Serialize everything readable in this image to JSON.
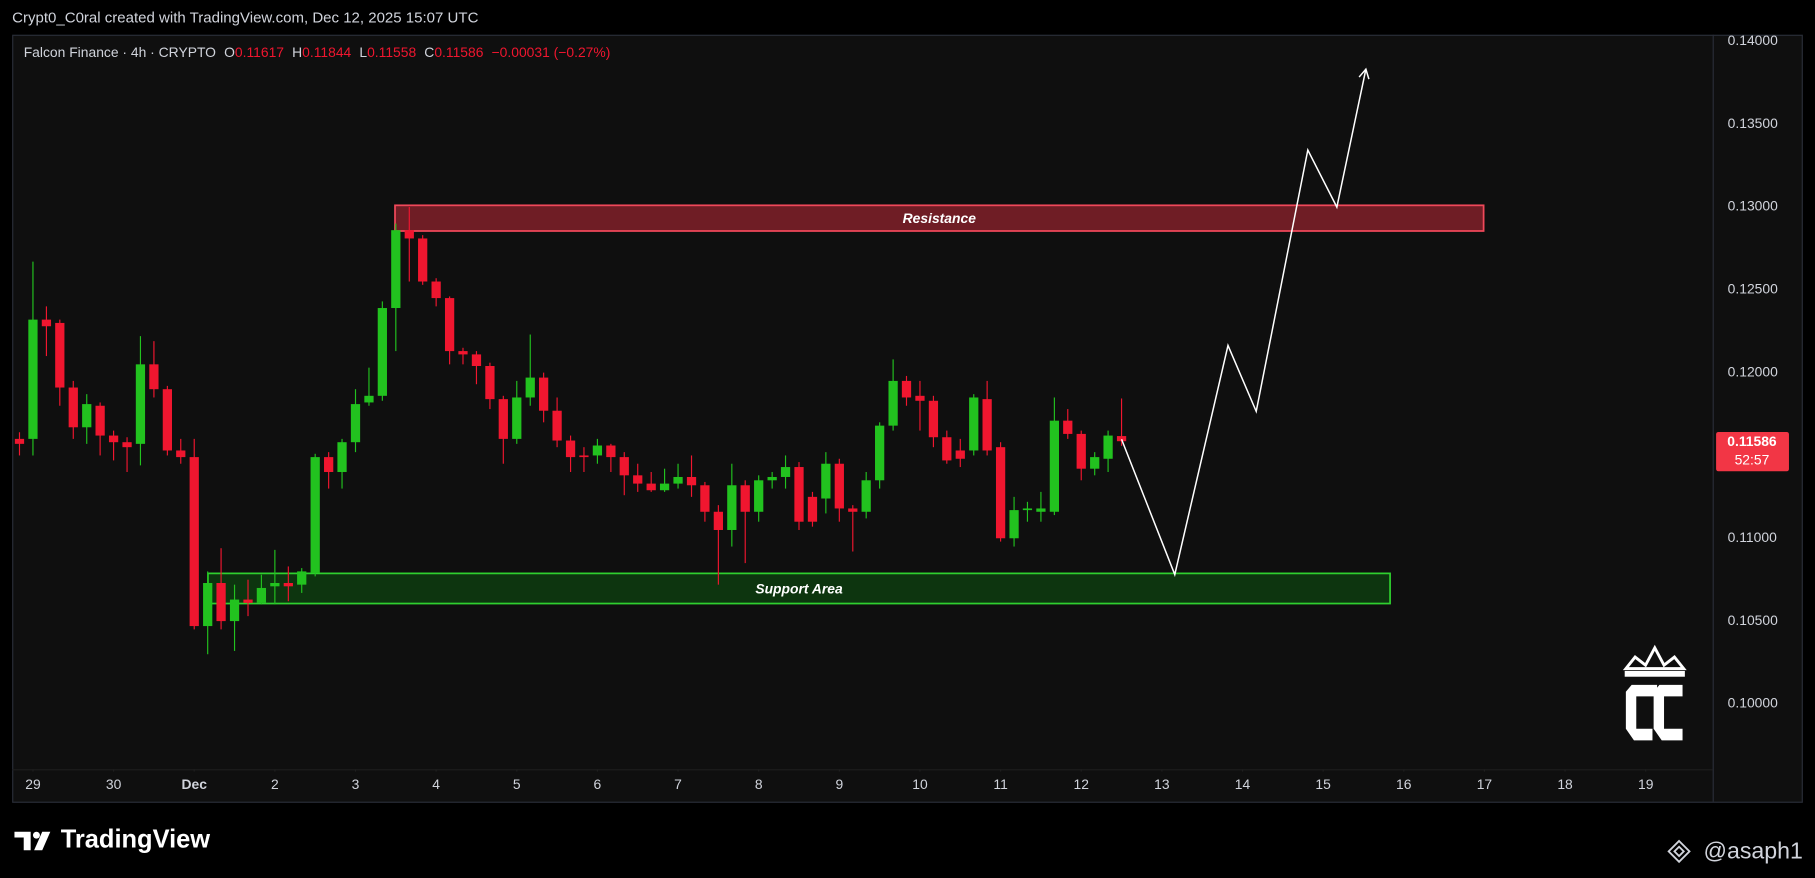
{
  "header": {
    "text": "Crypt0_C0ral created with TradingView.com, Dec 12, 2025 15:07 UTC"
  },
  "footer": {
    "brand": "TradingView",
    "handle": "@asaph1"
  },
  "chart_data": {
    "type": "candlestick",
    "title": "Falcon Finance · 4h · CRYPTO",
    "legend_fields": [
      {
        "key": "O",
        "value": 0.11617
      },
      {
        "key": "H",
        "value": 0.11844
      },
      {
        "key": "L",
        "value": 0.11558
      },
      {
        "key": "C",
        "value": 0.11586
      }
    ],
    "change": "−0.00031 (−0.27%)",
    "up_color": "#22c21f",
    "down_color": "#f0162f",
    "x": [
      -0.167,
      0,
      0.167,
      0.333,
      0.5,
      0.667,
      0.833,
      1,
      1.167,
      1.333,
      1.5,
      1.667,
      1.833,
      2,
      2.167,
      2.333,
      2.5,
      2.667,
      2.833,
      3,
      3.167,
      3.333,
      3.5,
      3.667,
      3.833,
      4,
      4.167,
      4.333,
      4.5,
      4.667,
      4.833,
      5,
      5.167,
      5.333,
      5.5,
      5.667,
      5.833,
      6,
      6.167,
      6.333,
      6.5,
      6.667,
      6.833,
      7,
      7.167,
      7.333,
      7.5,
      7.667,
      7.833,
      8,
      8.167,
      8.333,
      8.5,
      8.667,
      8.833,
      9,
      9.167,
      9.333,
      9.5,
      9.667,
      9.833,
      10,
      10.167,
      10.333,
      10.5,
      10.667,
      10.833,
      11,
      11.167,
      11.333,
      11.5,
      11.667,
      11.833,
      12,
      12.167,
      12.333,
      12.5,
      12.667,
      12.833,
      13,
      13.167,
      13.333,
      13.5
    ],
    "open": [
      0.116,
      0.116,
      0.1232,
      0.123,
      0.1191,
      0.1167,
      0.118,
      0.1162,
      0.1158,
      0.1157,
      0.1205,
      0.119,
      0.1153,
      0.1149,
      0.1047,
      0.1073,
      0.105,
      0.1063,
      0.1061,
      0.1071,
      0.1073,
      0.1072,
      0.1079,
      0.1149,
      0.114,
      0.1158,
      0.1182,
      0.1186,
      0.1239,
      0.1286,
      0.1281,
      0.1255,
      0.1245,
      0.1213,
      0.1211,
      0.1204,
      0.1184,
      0.116,
      0.1185,
      0.1197,
      0.1177,
      0.1159,
      0.115,
      0.115,
      0.1156,
      0.1149,
      0.1138,
      0.1133,
      0.1129,
      0.1133,
      0.1137,
      0.1132,
      0.1116,
      0.1105,
      0.1132,
      0.1116,
      0.1135,
      0.1137,
      0.1143,
      0.1125,
      0.1124,
      0.1145,
      0.1118,
      0.1116,
      0.1135,
      0.1168,
      0.1195,
      0.1186,
      0.1183,
      0.1161,
      0.1153,
      0.1153,
      0.1184,
      0.1155,
      0.11,
      0.1117,
      0.1116,
      0.1116,
      0.1171,
      0.1163,
      0.1142,
      0.1148,
      0.11617
    ],
    "high": [
      0.1164,
      0.1267,
      0.124,
      0.1232,
      0.1195,
      0.1187,
      0.1182,
      0.1165,
      0.1161,
      0.1222,
      0.1219,
      0.1192,
      0.116,
      0.116,
      0.108,
      0.1094,
      0.1072,
      0.1075,
      0.1078,
      0.1093,
      0.1083,
      0.1082,
      0.1151,
      0.1152,
      0.116,
      0.119,
      0.1203,
      0.1243,
      0.129,
      0.13,
      0.1283,
      0.1257,
      0.1246,
      0.1215,
      0.1213,
      0.1206,
      0.1186,
      0.1195,
      0.1223,
      0.12,
      0.1185,
      0.1162,
      0.1155,
      0.116,
      0.1157,
      0.1152,
      0.1145,
      0.114,
      0.1142,
      0.1145,
      0.115,
      0.1134,
      0.112,
      0.1145,
      0.1135,
      0.1138,
      0.114,
      0.115,
      0.1146,
      0.1128,
      0.1152,
      0.1148,
      0.112,
      0.114,
      0.117,
      0.1208,
      0.1198,
      0.1195,
      0.1186,
      0.1165,
      0.116,
      0.1187,
      0.1195,
      0.1158,
      0.1125,
      0.1122,
      0.1128,
      0.1185,
      0.1178,
      0.1165,
      0.1152,
      0.1165,
      0.11844
    ],
    "low": [
      0.115,
      0.115,
      0.121,
      0.118,
      0.116,
      0.1157,
      0.115,
      0.1147,
      0.114,
      0.1144,
      0.1185,
      0.115,
      0.1145,
      0.1045,
      0.103,
      0.1045,
      0.1032,
      0.1053,
      0.106,
      0.106,
      0.1062,
      0.1067,
      0.1077,
      0.113,
      0.113,
      0.1152,
      0.118,
      0.1183,
      0.1213,
      0.1255,
      0.1253,
      0.124,
      0.1205,
      0.1205,
      0.1193,
      0.1178,
      0.1145,
      0.1157,
      0.118,
      0.117,
      0.1155,
      0.114,
      0.114,
      0.1145,
      0.114,
      0.1126,
      0.1128,
      0.1128,
      0.1128,
      0.113,
      0.1125,
      0.111,
      0.1072,
      0.1095,
      0.1085,
      0.111,
      0.113,
      0.113,
      0.1105,
      0.1107,
      0.1115,
      0.111,
      0.1092,
      0.1112,
      0.113,
      0.1165,
      0.118,
      0.1165,
      0.1155,
      0.1145,
      0.1143,
      0.115,
      0.115,
      0.1098,
      0.1095,
      0.111,
      0.111,
      0.1114,
      0.116,
      0.1135,
      0.1138,
      0.114,
      0.11558
    ],
    "close": [
      0.1157,
      0.1232,
      0.1228,
      0.1191,
      0.1167,
      0.1181,
      0.1162,
      0.1158,
      0.1155,
      0.1205,
      0.119,
      0.1153,
      0.1149,
      0.1047,
      0.1073,
      0.105,
      0.1063,
      0.1061,
      0.107,
      0.1073,
      0.1071,
      0.108,
      0.1149,
      0.114,
      0.1158,
      0.1181,
      0.1186,
      0.1239,
      0.1286,
      0.1281,
      0.1255,
      0.1245,
      0.1213,
      0.1211,
      0.1204,
      0.1184,
      0.116,
      0.1185,
      0.1197,
      0.1177,
      0.1159,
      0.1149,
      0.1149,
      0.1156,
      0.1149,
      0.1138,
      0.1133,
      0.1129,
      0.1133,
      0.1137,
      0.1132,
      0.1116,
      0.1105,
      0.1132,
      0.1116,
      0.1135,
      0.1137,
      0.1143,
      0.111,
      0.111,
      0.1145,
      0.1118,
      0.1116,
      0.1135,
      0.1168,
      0.1195,
      0.1185,
      0.1183,
      0.1161,
      0.1147,
      0.1148,
      0.1185,
      0.1153,
      0.11,
      0.1117,
      0.1118,
      0.1118,
      0.1171,
      0.1163,
      0.1142,
      0.1149,
      0.1162,
      0.11586
    ],
    "xlim": [
      -0.258,
      20.83
    ],
    "ylim": [
      0.0941,
      0.1404
    ],
    "xticks": [
      {
        "value": 0,
        "label": "29"
      },
      {
        "value": 1,
        "label": "30"
      },
      {
        "value": 2,
        "label": "Dec"
      },
      {
        "value": 3,
        "label": "2"
      },
      {
        "value": 4,
        "label": "3"
      },
      {
        "value": 5,
        "label": "4"
      },
      {
        "value": 6,
        "label": "5"
      },
      {
        "value": 7,
        "label": "6"
      },
      {
        "value": 8,
        "label": "7"
      },
      {
        "value": 9,
        "label": "8"
      },
      {
        "value": 10,
        "label": "9"
      },
      {
        "value": 11,
        "label": "10"
      },
      {
        "value": 12,
        "label": "11"
      },
      {
        "value": 13,
        "label": "12"
      },
      {
        "value": 14,
        "label": "13"
      },
      {
        "value": 15,
        "label": "14"
      },
      {
        "value": 16,
        "label": "15"
      },
      {
        "value": 17,
        "label": "16"
      },
      {
        "value": 18,
        "label": "17"
      },
      {
        "value": 19,
        "label": "18"
      },
      {
        "value": 20,
        "label": "19"
      }
    ],
    "yticks": [
      {
        "value": 0.1,
        "label": "0.10000"
      },
      {
        "value": 0.105,
        "label": "0.10500"
      },
      {
        "value": 0.11,
        "label": "0.11000"
      },
      {
        "value": 0.12,
        "label": "0.12000"
      },
      {
        "value": 0.125,
        "label": "0.12500"
      },
      {
        "value": 0.13,
        "label": "0.13000"
      },
      {
        "value": 0.135,
        "label": "0.13500"
      },
      {
        "value": 0.14,
        "label": "0.14000"
      }
    ],
    "grid": false,
    "current_price": {
      "value": 0.11586,
      "label": "0.11586",
      "color": "#f23645"
    },
    "countdown": "52:57",
    "annotations": [
      {
        "type": "box",
        "label": "Resistance",
        "x": [
          4.49,
          17.99
        ],
        "y": [
          0.12855,
          0.1301
        ],
        "fill": "#7a1f28",
        "stroke": "#f0485a"
      },
      {
        "type": "box",
        "label": "Support Area",
        "x": [
          2.17,
          16.83
        ],
        "y": [
          0.10606,
          0.10788
        ],
        "fill": "#0d3a10",
        "stroke": "#2fd02f"
      },
      {
        "type": "path",
        "x": [
          13.5,
          14.16,
          14.82,
          15.17,
          15.81,
          16.17,
          16.53
        ],
        "y": [
          0.11598,
          0.10781,
          0.12164,
          0.11766,
          0.13344,
          0.12999,
          0.13832
        ],
        "stroke": "#ffffff"
      }
    ]
  }
}
